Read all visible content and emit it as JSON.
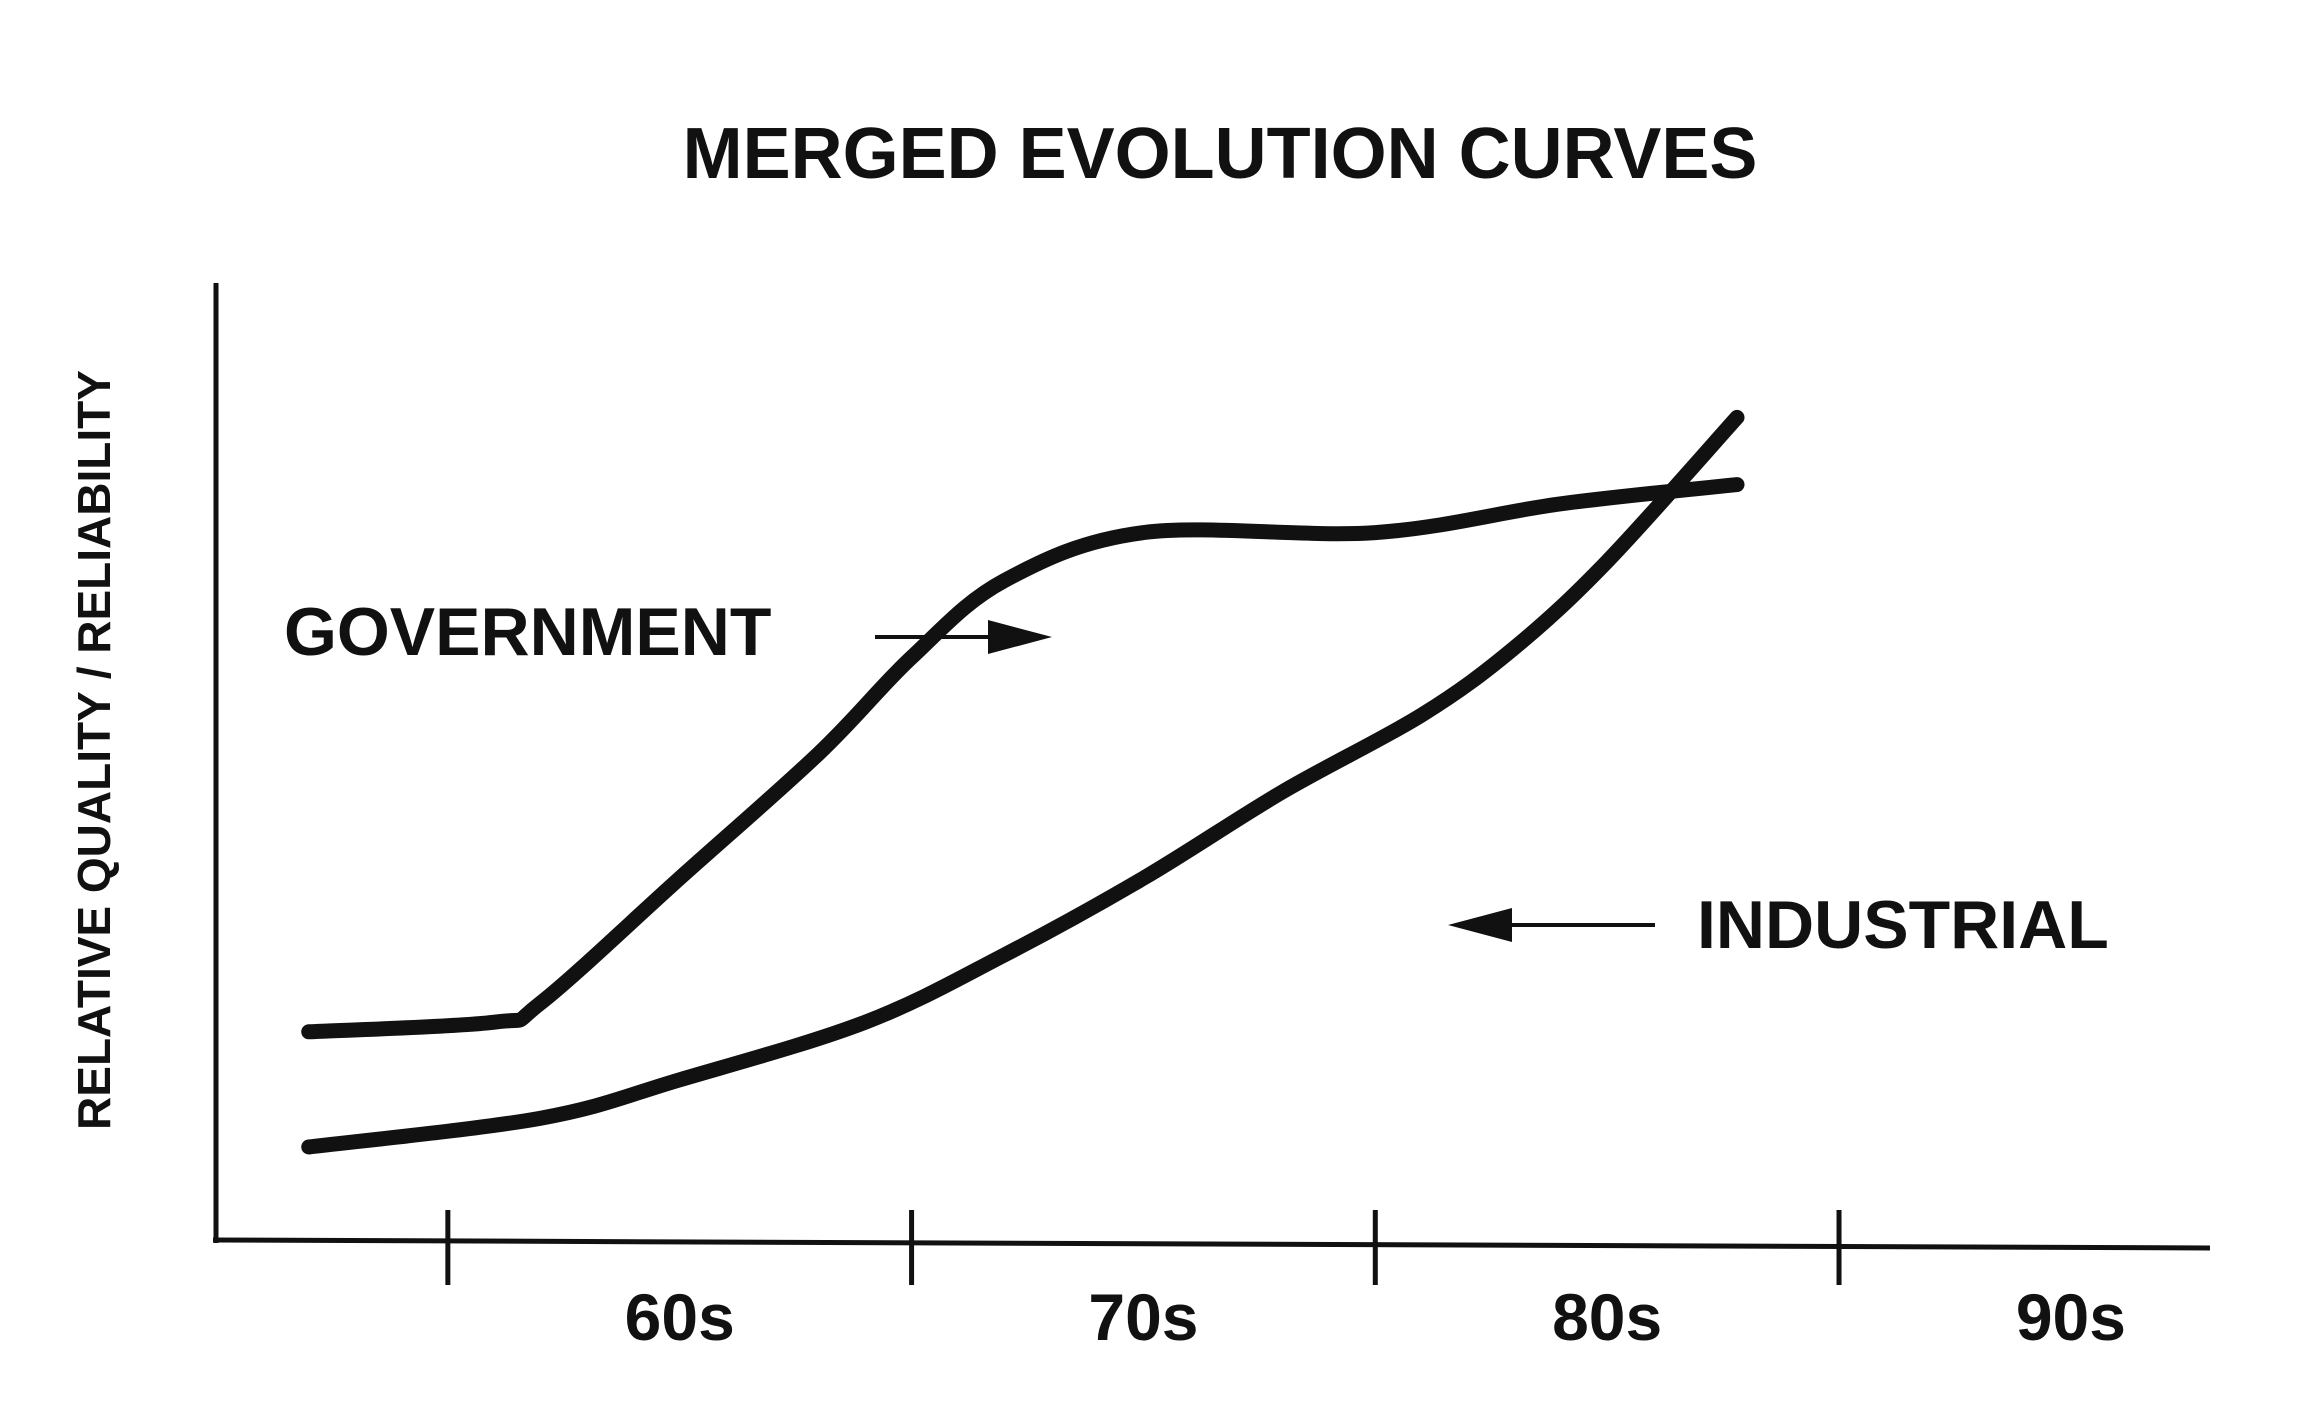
{
  "chart_data": {
    "type": "line",
    "title": "MERGED EVOLUTION CURVES",
    "xlabel": "",
    "ylabel": "RELATIVE QUALITY / RELIABILITY",
    "categories": [
      "60s",
      "70s",
      "80s",
      "90s"
    ],
    "xlim": [
      1955,
      1998
    ],
    "ylim": [
      0,
      100
    ],
    "grid": false,
    "legend": "none",
    "axis_ticks": false,
    "line_color": "#111111",
    "series": [
      {
        "name": "GOVERNMENT",
        "annotation": "arrow-pointing-right",
        "points": [
          [
            1957,
            22
          ],
          [
            1961,
            23
          ],
          [
            1962,
            25
          ],
          [
            1965,
            38
          ],
          [
            1968,
            51
          ],
          [
            1970,
            61
          ],
          [
            1972,
            69
          ],
          [
            1975,
            74
          ],
          [
            1980,
            74
          ],
          [
            1984,
            77
          ],
          [
            1987.8,
            79
          ]
        ]
      },
      {
        "name": "INDUSTRIAL",
        "annotation": "arrow-pointing-left",
        "points": [
          [
            1957,
            10
          ],
          [
            1962,
            13
          ],
          [
            1965,
            17
          ],
          [
            1969,
            23
          ],
          [
            1972,
            30
          ],
          [
            1975,
            38
          ],
          [
            1978,
            47
          ],
          [
            1981,
            55
          ],
          [
            1983,
            62
          ],
          [
            1985,
            71
          ],
          [
            1987.8,
            86
          ]
        ]
      }
    ]
  }
}
